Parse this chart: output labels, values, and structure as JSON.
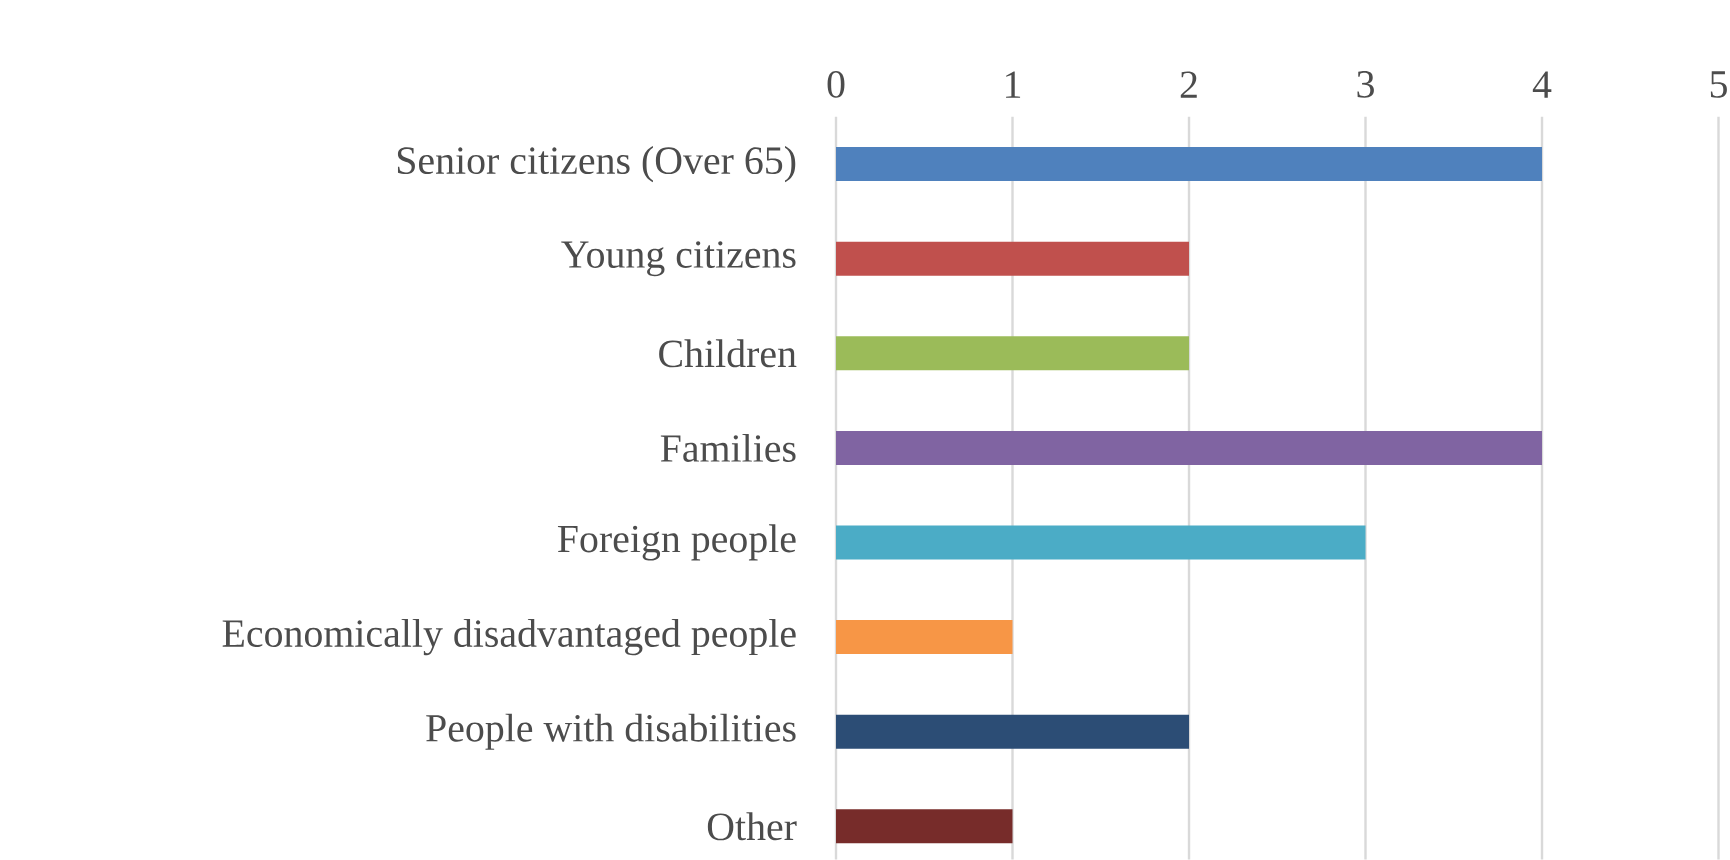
{
  "chart_data": {
    "type": "bar",
    "orientation": "horizontal",
    "categories": [
      "Senior citizens (Over 65)",
      "Young citizens",
      "Children",
      "Families",
      "Foreign people",
      "Economically disadvantaged people",
      "People with disabilities",
      "Other"
    ],
    "values": [
      4,
      2,
      2,
      4,
      3,
      1,
      2,
      1
    ],
    "colors": [
      "#4f81bd",
      "#c0504d",
      "#9bbb59",
      "#8064a2",
      "#4bacc6",
      "#f79646",
      "#2c4d75",
      "#772c2a"
    ],
    "xlim": [
      0,
      5
    ],
    "xticks": [
      0,
      1,
      2,
      3,
      4,
      5
    ],
    "grid": "x"
  }
}
